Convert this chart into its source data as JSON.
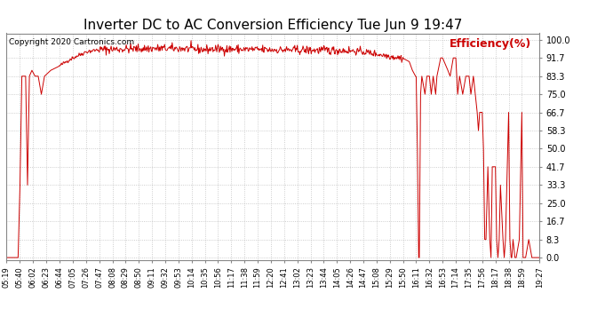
{
  "title": "Inverter DC to AC Conversion Efficiency Tue Jun 9 19:47",
  "copyright": "Copyright 2020 Cartronics.com",
  "legend_label": "Efficiency(%)",
  "background_color": "#ffffff",
  "plot_bg_color": "#ffffff",
  "grid_color": "#b0b0b0",
  "line_color": "#cc0000",
  "title_fontsize": 11,
  "ylabel_color": "#cc0000",
  "yticks": [
    0.0,
    8.3,
    16.7,
    25.0,
    33.3,
    41.7,
    50.0,
    58.3,
    66.7,
    75.0,
    83.3,
    91.7,
    100.0
  ],
  "ytick_labels": [
    "0.0",
    "8.3",
    "16.7",
    "25.0",
    "33.3",
    "41.7",
    "50.0",
    "58.3",
    "66.7",
    "75.0",
    "83.3",
    "91.7",
    "100.0"
  ],
  "xtick_labels": [
    "05:19",
    "05:40",
    "06:02",
    "06:23",
    "06:44",
    "07:05",
    "07:26",
    "07:47",
    "08:08",
    "08:29",
    "08:50",
    "09:11",
    "09:32",
    "09:53",
    "10:14",
    "10:35",
    "10:56",
    "11:17",
    "11:38",
    "11:59",
    "12:20",
    "12:41",
    "13:02",
    "13:23",
    "13:44",
    "14:05",
    "14:26",
    "14:47",
    "15:08",
    "15:29",
    "15:50",
    "16:11",
    "16:32",
    "16:53",
    "17:14",
    "17:35",
    "17:56",
    "18:17",
    "18:38",
    "18:59",
    "19:27"
  ],
  "figsize": [
    6.9,
    3.75
  ],
  "dpi": 100
}
